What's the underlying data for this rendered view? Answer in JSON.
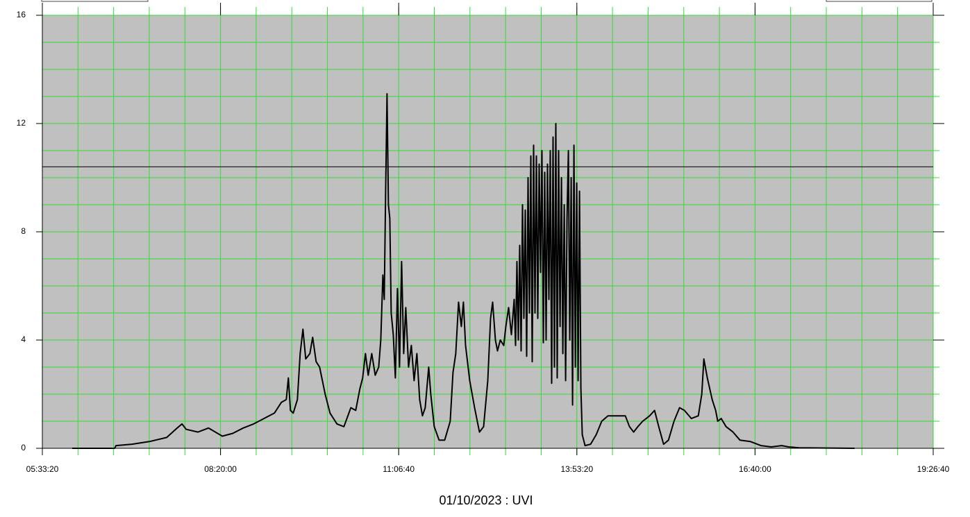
{
  "chart_data": {
    "type": "line",
    "title": "01/10/2023 : UVI",
    "x": [
      21677,
      24056,
      24134,
      25031,
      26006,
      26981,
      27566,
      27839,
      28073,
      28736,
      29321,
      29711,
      30101,
      30686,
      31271,
      31856,
      32441,
      33026,
      33416,
      33689,
      33806,
      33923,
      34079,
      34313,
      34469,
      34625,
      34781,
      35015,
      35171,
      35366,
      35561,
      35873,
      36146,
      36536,
      36926,
      37316,
      37589,
      37823,
      37979,
      38135,
      38291,
      38486,
      38681,
      38876,
      38993,
      39110,
      39188,
      39266,
      39344,
      39422,
      39500,
      39578,
      39695,
      39812,
      39929,
      40046,
      40163,
      40280,
      40397,
      40553,
      40709,
      40865,
      41021,
      41177,
      41333,
      41489,
      41684,
      41801,
      41996,
      42269,
      42581,
      42893,
      43049,
      43205,
      43361,
      43517,
      43634,
      43751,
      43985,
      44258,
      44531,
      44765,
      44999,
      45155,
      45272,
      45428,
      45545,
      45701,
      45896,
      46013,
      46169,
      46325,
      46481,
      46559,
      46637,
      46715,
      46793,
      46871,
      46949,
      47027,
      47105,
      47183,
      47261,
      47339,
      47417,
      47495,
      47573,
      47651,
      47729,
      47807,
      47885,
      47963,
      48041,
      48119,
      48197,
      48275,
      48353,
      48431,
      48509,
      48587,
      48665,
      48743,
      48821,
      48899,
      48977,
      49055,
      49133,
      49211,
      49289,
      49367,
      49445,
      49523,
      49601,
      49679,
      49757,
      49835,
      49913,
      49991,
      50069,
      50147,
      50225,
      50303,
      50459,
      50771,
      51083,
      51395,
      51746,
      52331,
      52721,
      52955,
      53189,
      53423,
      53696,
      54086,
      54359,
      54593,
      54866,
      55139,
      55451,
      55763,
      56036,
      56426,
      56816,
      57011,
      57128,
      57323,
      57596,
      57791,
      57908,
      58103,
      58376,
      58766,
      59156,
      59741,
      60326,
      60911,
      61496,
      61886,
      62471,
      65591
    ],
    "series": [
      {
        "name": "UVI",
        "color": "#000000",
        "values": [
          0,
          0,
          0.1,
          0.15,
          0.25,
          0.4,
          0.75,
          0.9,
          0.7,
          0.6,
          0.75,
          0.6,
          0.45,
          0.55,
          0.75,
          0.9,
          1.1,
          1.3,
          1.7,
          1.8,
          2.6,
          1.4,
          1.3,
          1.8,
          3.5,
          4.4,
          3.3,
          3.5,
          4.1,
          3.2,
          3.0,
          2.0,
          1.3,
          0.9,
          0.8,
          1.5,
          1.4,
          2.2,
          2.6,
          3.5,
          2.7,
          3.5,
          2.7,
          3.0,
          4.0,
          6.4,
          5.5,
          9.5,
          13.1,
          9.0,
          8.5,
          5.0,
          4.2,
          2.6,
          5.9,
          3.0,
          6.9,
          3.5,
          5.2,
          3.0,
          3.8,
          2.5,
          3.5,
          1.8,
          1.2,
          1.5,
          3.0,
          2.0,
          0.8,
          0.3,
          0.3,
          1.0,
          2.8,
          3.5,
          5.4,
          4.5,
          5.4,
          3.8,
          2.5,
          1.5,
          0.6,
          0.8,
          2.5,
          4.8,
          5.4,
          4.0,
          3.6,
          4.0,
          3.8,
          4.5,
          5.2,
          4.2,
          5.5,
          3.8,
          6.9,
          4.0,
          7.5,
          3.6,
          9.0,
          4.8,
          8.8,
          3.4,
          10.0,
          5.0,
          10.8,
          3.2,
          11.2,
          5.0,
          10.8,
          4.8,
          10.5,
          6.5,
          11.0,
          3.9,
          10.2,
          4.0,
          10.5,
          5.5,
          11.0,
          2.4,
          11.5,
          3.0,
          12.0,
          2.6,
          11.0,
          4.5,
          10.0,
          3.5,
          9.0,
          2.5,
          8.5,
          11.0,
          4.0,
          10.0,
          1.6,
          11.2,
          3.0,
          9.8,
          2.5,
          9.5,
          2.2,
          0.5,
          0.1,
          0.15,
          0.5,
          1.0,
          1.2,
          1.2,
          1.2,
          0.8,
          0.6,
          0.8,
          1.0,
          1.2,
          1.4,
          0.8,
          0.15,
          0.3,
          1.0,
          1.5,
          1.4,
          1.1,
          1.2,
          2.0,
          3.3,
          2.6,
          1.8,
          1.4,
          1.0,
          1.1,
          0.8,
          0.6,
          0.3,
          0.25,
          0.1,
          0.05,
          0.1,
          0.05,
          0.02,
          0
        ]
      }
    ],
    "xlim": [
      20000,
      70000
    ],
    "xticks": [
      {
        "value": 20000,
        "label": "05:33:20"
      },
      {
        "value": 30000,
        "label": "08:20:00"
      },
      {
        "value": 40000,
        "label": "11:06:40"
      },
      {
        "value": 50000,
        "label": "13:53:20"
      },
      {
        "value": 60000,
        "label": "16:40:00"
      },
      {
        "value": 70000,
        "label": "19:26:40"
      }
    ],
    "ylim": [
      0,
      16
    ],
    "yticks": [
      0,
      4,
      8,
      12,
      16
    ],
    "xgrid_step": 2000,
    "ygrid_step": 1,
    "grid_color": "#33dd33",
    "background": "#c0c0c0",
    "hline": 10.4
  }
}
